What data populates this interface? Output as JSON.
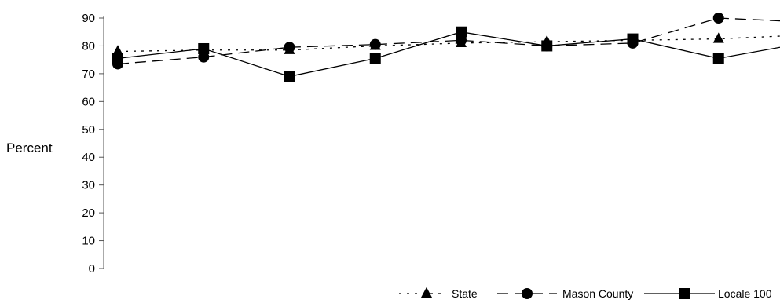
{
  "chart_data": {
    "type": "line",
    "xlabel": "",
    "ylabel": "Percent",
    "ylim": [
      0,
      90
    ],
    "yticks": [
      0,
      10,
      20,
      30,
      40,
      50,
      60,
      70,
      80,
      90
    ],
    "grid": false,
    "legend_position": "bottom-right",
    "x": [
      1,
      2,
      3,
      4,
      5,
      6,
      7,
      8,
      9
    ],
    "series": [
      {
        "name": "State",
        "marker": "triangle",
        "dash": "dotted",
        "values": [
          78,
          78.5,
          78.5,
          80,
          81,
          81.5,
          82,
          82.5,
          83.5
        ]
      },
      {
        "name": "Mason County",
        "marker": "circle",
        "dash": "dashed",
        "values": [
          73.5,
          76,
          79.5,
          80.5,
          82,
          80,
          81,
          90,
          89
        ]
      },
      {
        "name": "Locale 100",
        "marker": "square",
        "dash": "solid",
        "values": [
          75.5,
          79,
          69,
          75.5,
          85,
          80,
          82.5,
          75.5,
          79.5
        ]
      }
    ]
  }
}
